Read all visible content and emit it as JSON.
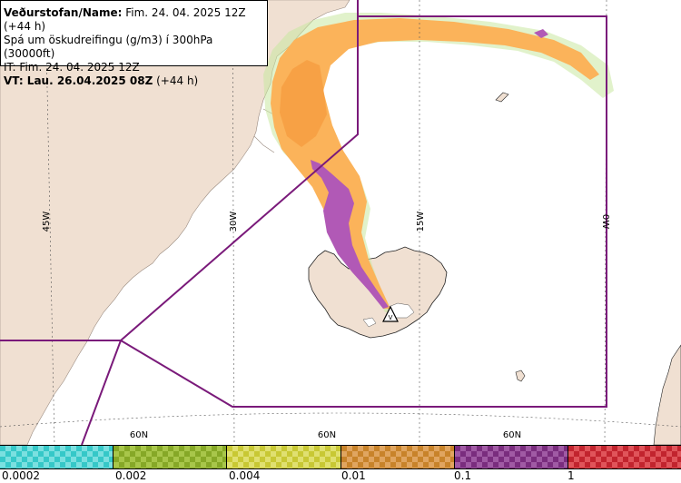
{
  "header": {
    "line1_bold": "Veðurstofan/Name:",
    "line1_rest": " Fim. 24. 04. 2025 12Z (+44 h)",
    "line2": "Spá um öskudreifingu (g/m3) í 300hPa (30000ft)",
    "line3": "IT: Fim. 24. 04. 2025 12Z",
    "line4_bold": "VT: Lau. 26.04.2025 08Z",
    "line4_rest": " (+44 h)"
  },
  "graticule": {
    "longitudes": [
      "45W",
      "30W",
      "15W",
      "0W"
    ],
    "latitudes": [
      "60N",
      "60N",
      "60N"
    ]
  },
  "colors": {
    "land": "#f0e0d2",
    "sea": "#ffffff",
    "fir_boundary": "#7a1a7a",
    "ash_light": "#ffd9a0",
    "ash_orange": "#fbb35a",
    "ash_purple": "#b159b6",
    "ash_cyan": "#a7eae8",
    "ash_green": "#c9e8a0"
  },
  "legend": {
    "cells": [
      {
        "color": "#36c8c8",
        "alt": "#7be0e0",
        "name": "cyan"
      },
      {
        "color": "#86a827",
        "alt": "#a8c64a",
        "name": "olive-green"
      },
      {
        "color": "#c8c834",
        "alt": "#e0e070",
        "name": "yellow"
      },
      {
        "color": "#c8832a",
        "alt": "#e0a560",
        "name": "orange"
      },
      {
        "color": "#7a2d7e",
        "alt": "#a05aa4",
        "name": "purple"
      },
      {
        "color": "#c2242e",
        "alt": "#e0545a",
        "name": "red"
      }
    ],
    "labels": [
      "0.0002",
      "0.002",
      "0.004",
      "0.01",
      "0.1",
      "1"
    ]
  },
  "volcano_label": "V"
}
